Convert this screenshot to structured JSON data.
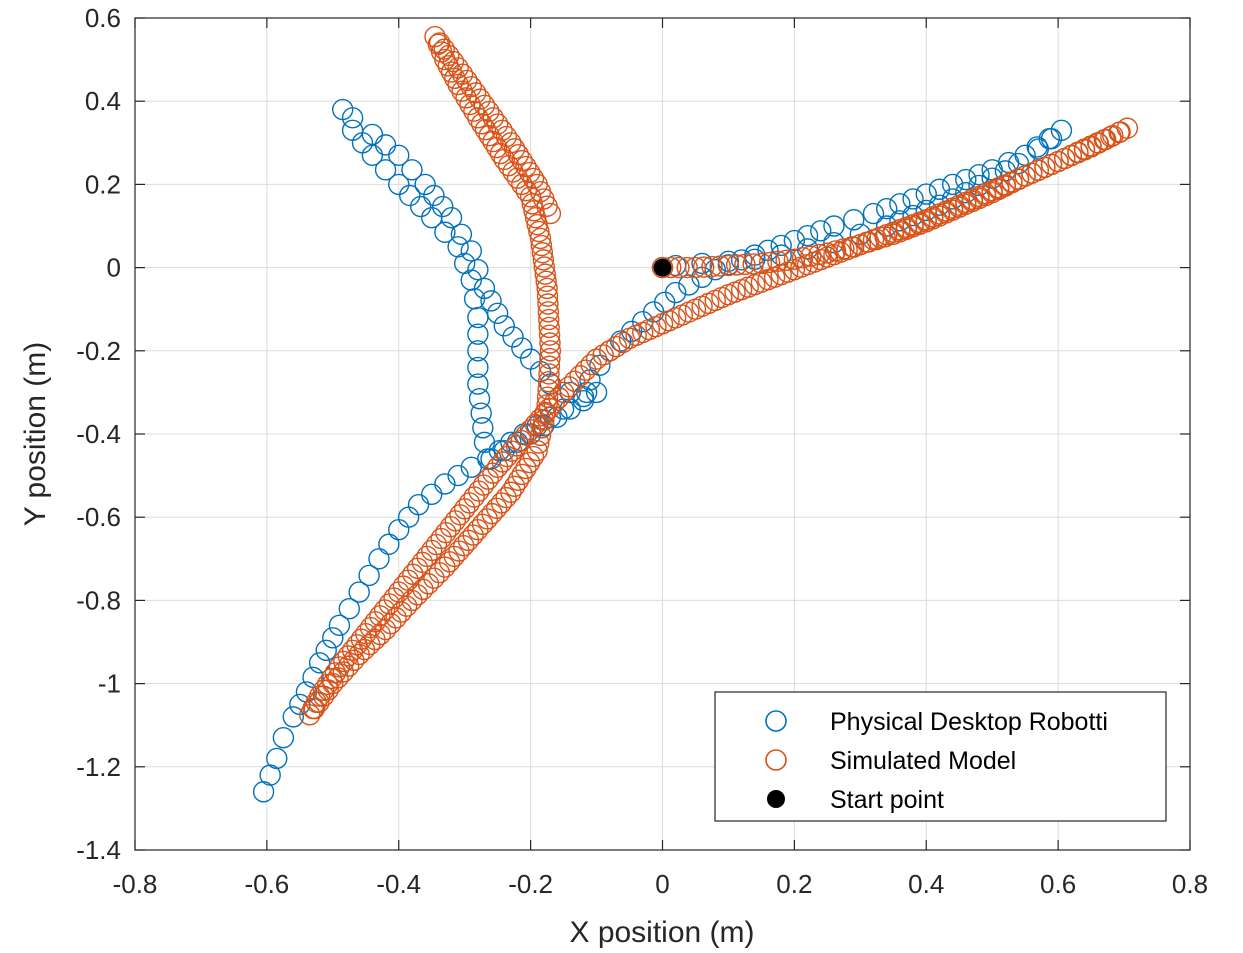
{
  "chart_data": {
    "type": "scatter",
    "title": "",
    "xlabel": "X position (m)",
    "ylabel": "Y position (m)",
    "xlim": [
      -0.8,
      0.8
    ],
    "ylim": [
      -1.4,
      0.6
    ],
    "xticks": [
      "-0.8",
      "-0.6",
      "-0.4",
      "-0.2",
      "0",
      "0.2",
      "0.4",
      "0.6",
      "0.8"
    ],
    "yticks": [
      "0.6",
      "0.4",
      "0.2",
      "0",
      "-0.2",
      "-0.4",
      "-0.6",
      "-0.8",
      "-1",
      "-1.2",
      "-1.4"
    ],
    "grid": true,
    "legend_position": "bottom-right",
    "series": [
      {
        "name": "Physical Desktop Robotti",
        "marker": "open-circle",
        "color": "#0072BD",
        "points": [
          [
            0.0,
            0.0
          ],
          [
            0.02,
            0.005
          ],
          [
            0.06,
            0.01
          ],
          [
            0.1,
            0.015
          ],
          [
            0.14,
            0.02
          ],
          [
            0.18,
            0.03
          ],
          [
            0.22,
            0.045
          ],
          [
            0.26,
            0.06
          ],
          [
            0.3,
            0.08
          ],
          [
            0.34,
            0.1
          ],
          [
            0.38,
            0.125
          ],
          [
            0.42,
            0.15
          ],
          [
            0.46,
            0.18
          ],
          [
            0.5,
            0.215
          ],
          [
            0.54,
            0.25
          ],
          [
            0.57,
            0.285
          ],
          [
            0.59,
            0.31
          ],
          [
            0.605,
            0.33
          ],
          [
            0.55,
            0.27
          ],
          [
            0.5,
            0.235
          ],
          [
            0.44,
            0.2
          ],
          [
            0.38,
            0.165
          ],
          [
            0.32,
            0.13
          ],
          [
            0.26,
            0.1
          ],
          [
            0.2,
            0.065
          ],
          [
            0.14,
            0.03
          ],
          [
            0.08,
            -0.005
          ],
          [
            0.02,
            -0.06
          ],
          [
            -0.03,
            -0.13
          ],
          [
            -0.08,
            -0.2
          ],
          [
            -0.11,
            -0.27
          ],
          [
            -0.115,
            -0.3
          ],
          [
            -0.14,
            -0.3
          ],
          [
            -0.17,
            -0.28
          ],
          [
            -0.2,
            -0.22
          ],
          [
            -0.24,
            -0.14
          ],
          [
            -0.27,
            -0.05
          ],
          [
            -0.29,
            0.04
          ],
          [
            -0.32,
            0.12
          ],
          [
            -0.36,
            0.2
          ],
          [
            -0.4,
            0.27
          ],
          [
            -0.44,
            0.32
          ],
          [
            -0.47,
            0.36
          ],
          [
            -0.485,
            0.38
          ],
          [
            -0.47,
            0.33
          ],
          [
            -0.44,
            0.27
          ],
          [
            -0.4,
            0.2
          ],
          [
            -0.35,
            0.12
          ],
          [
            -0.31,
            0.05
          ],
          [
            -0.29,
            -0.03
          ],
          [
            -0.28,
            -0.12
          ],
          [
            -0.28,
            -0.2
          ],
          [
            -0.28,
            -0.28
          ],
          [
            -0.275,
            -0.35
          ],
          [
            -0.27,
            -0.42
          ],
          [
            -0.265,
            -0.46
          ],
          [
            -0.23,
            -0.42
          ],
          [
            -0.19,
            -0.38
          ],
          [
            -0.15,
            -0.34
          ],
          [
            -0.12,
            -0.31
          ],
          [
            -0.1,
            -0.3
          ],
          [
            -0.26,
            -0.46
          ],
          [
            -0.29,
            -0.48
          ],
          [
            -0.33,
            -0.52
          ],
          [
            -0.37,
            -0.57
          ],
          [
            -0.4,
            -0.63
          ],
          [
            -0.43,
            -0.7
          ],
          [
            -0.46,
            -0.78
          ],
          [
            -0.49,
            -0.86
          ],
          [
            -0.52,
            -0.95
          ],
          [
            -0.54,
            -1.02
          ],
          [
            -0.56,
            -1.08
          ],
          [
            -0.575,
            -1.13
          ],
          [
            -0.585,
            -1.18
          ],
          [
            -0.595,
            -1.22
          ],
          [
            -0.605,
            -1.26
          ]
        ]
      },
      {
        "name": "Simulated Model",
        "marker": "open-circle",
        "color": "#D95319",
        "points": [
          [
            0.0,
            0.0
          ],
          [
            0.05,
            0.0
          ],
          [
            0.1,
            0.005
          ],
          [
            0.15,
            0.01
          ],
          [
            0.2,
            0.02
          ],
          [
            0.25,
            0.035
          ],
          [
            0.3,
            0.055
          ],
          [
            0.35,
            0.08
          ],
          [
            0.4,
            0.11
          ],
          [
            0.45,
            0.145
          ],
          [
            0.5,
            0.18
          ],
          [
            0.55,
            0.22
          ],
          [
            0.6,
            0.255
          ],
          [
            0.64,
            0.285
          ],
          [
            0.68,
            0.315
          ],
          [
            0.705,
            0.335
          ],
          [
            0.65,
            0.29
          ],
          [
            0.6,
            0.255
          ],
          [
            0.55,
            0.22
          ],
          [
            0.5,
            0.185
          ],
          [
            0.45,
            0.15
          ],
          [
            0.4,
            0.115
          ],
          [
            0.35,
            0.085
          ],
          [
            0.3,
            0.055
          ],
          [
            0.25,
            0.025
          ],
          [
            0.2,
            -0.005
          ],
          [
            0.15,
            -0.035
          ],
          [
            0.1,
            -0.065
          ],
          [
            0.05,
            -0.1
          ],
          [
            0.0,
            -0.135
          ],
          [
            -0.05,
            -0.17
          ],
          [
            -0.1,
            -0.22
          ],
          [
            -0.15,
            -0.3
          ],
          [
            -0.2,
            -0.39
          ],
          [
            -0.25,
            -0.48
          ],
          [
            -0.3,
            -0.58
          ],
          [
            -0.35,
            -0.68
          ],
          [
            -0.4,
            -0.78
          ],
          [
            -0.45,
            -0.88
          ],
          [
            -0.49,
            -0.96
          ],
          [
            -0.52,
            -1.03
          ],
          [
            -0.535,
            -1.075
          ],
          [
            -0.5,
            -1.0
          ],
          [
            -0.46,
            -0.93
          ],
          [
            -0.42,
            -0.87
          ],
          [
            -0.38,
            -0.8
          ],
          [
            -0.33,
            -0.72
          ],
          [
            -0.28,
            -0.63
          ],
          [
            -0.23,
            -0.54
          ],
          [
            -0.19,
            -0.44
          ],
          [
            -0.175,
            -0.33
          ],
          [
            -0.17,
            -0.2
          ],
          [
            -0.175,
            -0.05
          ],
          [
            -0.185,
            0.07
          ],
          [
            -0.2,
            0.17
          ],
          [
            -0.24,
            0.26
          ],
          [
            -0.28,
            0.36
          ],
          [
            -0.31,
            0.44
          ],
          [
            -0.33,
            0.5
          ],
          [
            -0.345,
            0.555
          ],
          [
            -0.31,
            0.48
          ],
          [
            -0.27,
            0.39
          ],
          [
            -0.23,
            0.3
          ],
          [
            -0.19,
            0.2
          ],
          [
            -0.17,
            0.13
          ]
        ]
      },
      {
        "name": "Start point",
        "marker": "filled-circle",
        "color": "#000000",
        "points": [
          [
            0.0,
            0.0
          ]
        ]
      }
    ]
  }
}
